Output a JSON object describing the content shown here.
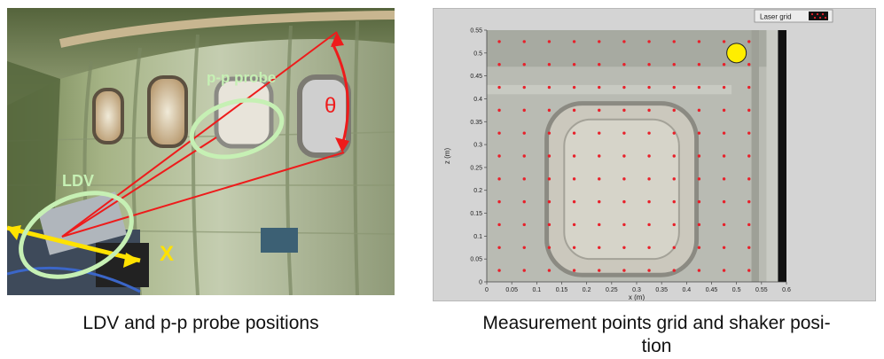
{
  "left": {
    "labels": {
      "pp_probe": "p-p probe",
      "ldv": "LDV",
      "x_axis": "X",
      "theta": "θ"
    },
    "caption": "LDV and p-p probe positions"
  },
  "right": {
    "legend_label": "Laser grid",
    "caption_line1": "Measurement points grid and shaker posi-",
    "caption_line2": "tion",
    "chart_data": {
      "type": "scatter",
      "xlabel": "x (m)",
      "ylabel": "z (m)",
      "xlim": [
        0,
        0.6
      ],
      "ylim": [
        0,
        0.55
      ],
      "xticks": [
        "0",
        "0.05",
        "0.1",
        "0.15",
        "0.2",
        "0.25",
        "0.3",
        "0.35",
        "0.4",
        "0.45",
        "0.5",
        "0.55",
        "0.6"
      ],
      "yticks": [
        "0",
        "0.05",
        "0.1",
        "0.15",
        "0.2",
        "0.25",
        "0.3",
        "0.35",
        "0.4",
        "0.45",
        "0.5",
        "0.55"
      ],
      "grid_points": {
        "x": [
          0.025,
          0.075,
          0.125,
          0.175,
          0.225,
          0.275,
          0.325,
          0.375,
          0.425,
          0.475,
          0.525
        ],
        "z": [
          0.025,
          0.075,
          0.125,
          0.175,
          0.225,
          0.275,
          0.325,
          0.375,
          0.425,
          0.475,
          0.525
        ]
      },
      "shaker_position": {
        "x": 0.5,
        "z": 0.5
      },
      "point_color": "#e8202a",
      "shaker_color": "#ffee00"
    }
  }
}
